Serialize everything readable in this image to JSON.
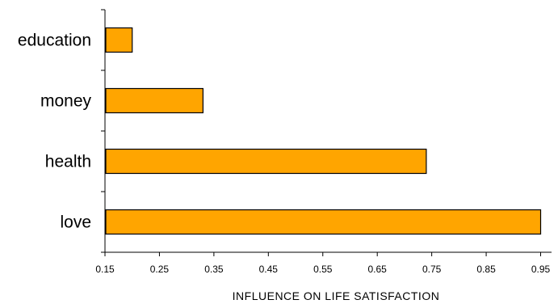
{
  "chart_data": {
    "type": "bar",
    "orientation": "horizontal",
    "categories": [
      "education",
      "money",
      "health",
      "love"
    ],
    "values": [
      0.2,
      0.33,
      0.74,
      0.95
    ],
    "xlabel": "INFLUENCE ON LIFE SATISFACTION",
    "ylabel": "",
    "xlim": [
      0.15,
      0.97
    ],
    "xticks": [
      "0.15",
      "0.25",
      "0.35",
      "0.45",
      "0.55",
      "0.65",
      "0.75",
      "0.85",
      "0.95"
    ],
    "grid": false,
    "legend": "none",
    "bar_color": "#FFA500"
  }
}
